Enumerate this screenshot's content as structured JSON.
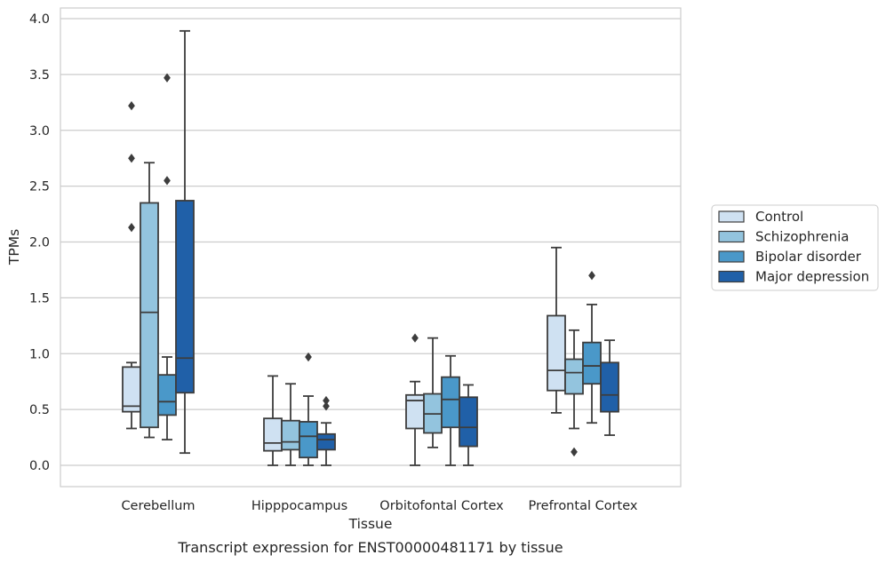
{
  "caption": "Transcript expression for ENST00000481171 by tissue",
  "chart_data": {
    "type": "boxplot",
    "xlabel": "Tissue",
    "ylabel": "TPMs",
    "ylim": [
      -0.18,
      4.1
    ],
    "yticks": [
      "0.0",
      "0.5",
      "1.0",
      "1.5",
      "2.0",
      "2.5",
      "3.0",
      "3.5",
      "4.0"
    ],
    "categories": [
      "Cerebellum",
      "Hipppocampus",
      "Orbitofontal Cortex",
      "Prefrontal Cortex"
    ],
    "grid": "horizontal",
    "legend_position": "right-center",
    "series": [
      {
        "name": "Control",
        "color": "#cfe1f2",
        "boxes": [
          {
            "whisker_low": 0.33,
            "q1": 0.48,
            "median": 0.53,
            "q3": 0.88,
            "whisker_high": 0.92,
            "outliers": [
              2.13,
              2.75,
              3.22
            ]
          },
          {
            "whisker_low": 0.0,
            "q1": 0.13,
            "median": 0.2,
            "q3": 0.42,
            "whisker_high": 0.8,
            "outliers": []
          },
          {
            "whisker_low": 0.0,
            "q1": 0.33,
            "median": 0.58,
            "q3": 0.63,
            "whisker_high": 0.75,
            "outliers": [
              1.14
            ]
          },
          {
            "whisker_low": 0.47,
            "q1": 0.67,
            "median": 0.85,
            "q3": 1.34,
            "whisker_high": 1.95,
            "outliers": []
          }
        ]
      },
      {
        "name": "Schizophrenia",
        "color": "#93c4de",
        "boxes": [
          {
            "whisker_low": 0.25,
            "q1": 0.34,
            "median": 1.37,
            "q3": 2.35,
            "whisker_high": 2.71,
            "outliers": []
          },
          {
            "whisker_low": 0.0,
            "q1": 0.14,
            "median": 0.21,
            "q3": 0.4,
            "whisker_high": 0.73,
            "outliers": []
          },
          {
            "whisker_low": 0.16,
            "q1": 0.29,
            "median": 0.46,
            "q3": 0.64,
            "whisker_high": 1.14,
            "outliers": []
          },
          {
            "whisker_low": 0.33,
            "q1": 0.64,
            "median": 0.83,
            "q3": 0.95,
            "whisker_high": 1.21,
            "outliers": [
              0.12
            ]
          }
        ]
      },
      {
        "name": "Bipolar disorder",
        "color": "#4a98c9",
        "boxes": [
          {
            "whisker_low": 0.23,
            "q1": 0.45,
            "median": 0.57,
            "q3": 0.81,
            "whisker_high": 0.97,
            "outliers": [
              2.55,
              3.47
            ]
          },
          {
            "whisker_low": 0.0,
            "q1": 0.07,
            "median": 0.26,
            "q3": 0.39,
            "whisker_high": 0.62,
            "outliers": [
              0.97
            ]
          },
          {
            "whisker_low": 0.0,
            "q1": 0.34,
            "median": 0.59,
            "q3": 0.79,
            "whisker_high": 0.98,
            "outliers": []
          },
          {
            "whisker_low": 0.38,
            "q1": 0.73,
            "median": 0.89,
            "q3": 1.1,
            "whisker_high": 1.44,
            "outliers": [
              1.7
            ]
          }
        ]
      },
      {
        "name": "Major depression",
        "color": "#2060a8",
        "boxes": [
          {
            "whisker_low": 0.11,
            "q1": 0.65,
            "median": 0.96,
            "q3": 2.37,
            "whisker_high": 3.89,
            "outliers": []
          },
          {
            "whisker_low": 0.0,
            "q1": 0.14,
            "median": 0.23,
            "q3": 0.28,
            "whisker_high": 0.38,
            "outliers": [
              0.53,
              0.58
            ]
          },
          {
            "whisker_low": 0.0,
            "q1": 0.17,
            "median": 0.34,
            "q3": 0.61,
            "whisker_high": 0.72,
            "outliers": []
          },
          {
            "whisker_low": 0.27,
            "q1": 0.48,
            "median": 0.63,
            "q3": 0.92,
            "whisker_high": 1.12,
            "outliers": []
          }
        ]
      }
    ]
  }
}
